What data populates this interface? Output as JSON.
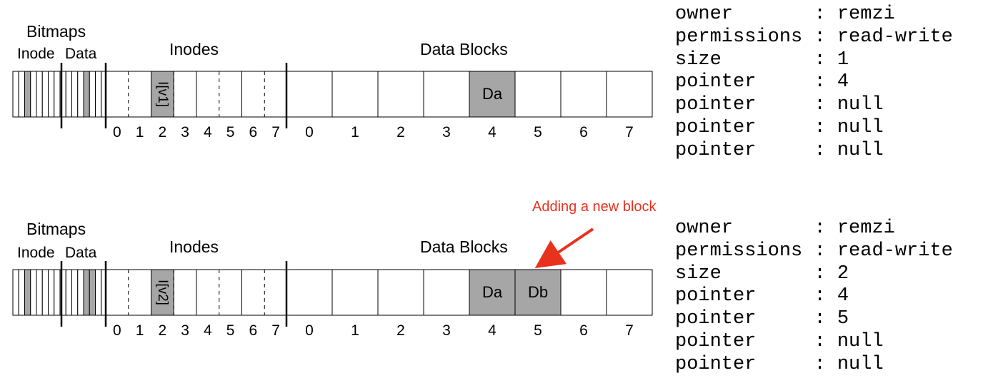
{
  "diagrams": [
    {
      "bitmaps_label": "Bitmaps",
      "inode_label": "Inode",
      "data_label": "Data",
      "inodes_label": "Inodes",
      "data_blocks_label": "Data Blocks",
      "inode_bitmap_set": [
        2
      ],
      "data_bitmap_set": [
        4
      ],
      "inode_numbers": [
        "0",
        "1",
        "2",
        "3",
        "4",
        "5",
        "6",
        "7"
      ],
      "block_numbers": [
        "0",
        "1",
        "2",
        "3",
        "4",
        "5",
        "6",
        "7"
      ],
      "inode_box_label": "I[v1]",
      "blocks": [
        {
          "index": 4,
          "label": "Da"
        }
      ],
      "metadata": [
        {
          "key": "owner",
          "value": "remzi"
        },
        {
          "key": "permissions",
          "value": "read-write"
        },
        {
          "key": "size",
          "value": "1"
        },
        {
          "key": "pointer",
          "value": "4"
        },
        {
          "key": "pointer",
          "value": "null"
        },
        {
          "key": "pointer",
          "value": "null"
        },
        {
          "key": "pointer",
          "value": "null"
        }
      ]
    },
    {
      "bitmaps_label": "Bitmaps",
      "inode_label": "Inode",
      "data_label": "Data",
      "inodes_label": "Inodes",
      "data_blocks_label": "Data Blocks",
      "inode_bitmap_set": [
        2
      ],
      "data_bitmap_set": [
        4,
        5
      ],
      "inode_numbers": [
        "0",
        "1",
        "2",
        "3",
        "4",
        "5",
        "6",
        "7"
      ],
      "block_numbers": [
        "0",
        "1",
        "2",
        "3",
        "4",
        "5",
        "6",
        "7"
      ],
      "inode_box_label": "I[v2]",
      "blocks": [
        {
          "index": 4,
          "label": "Da"
        },
        {
          "index": 5,
          "label": "Db"
        }
      ],
      "metadata": [
        {
          "key": "owner",
          "value": "remzi"
        },
        {
          "key": "permissions",
          "value": "read-write"
        },
        {
          "key": "size",
          "value": "2"
        },
        {
          "key": "pointer",
          "value": "4"
        },
        {
          "key": "pointer",
          "value": "5"
        },
        {
          "key": "pointer",
          "value": "null"
        },
        {
          "key": "pointer",
          "value": "null"
        }
      ]
    }
  ],
  "annotation": "Adding a new block",
  "colors": {
    "fill": "#a6a6a6",
    "line": "#000000",
    "annotation": "#e8321e"
  }
}
